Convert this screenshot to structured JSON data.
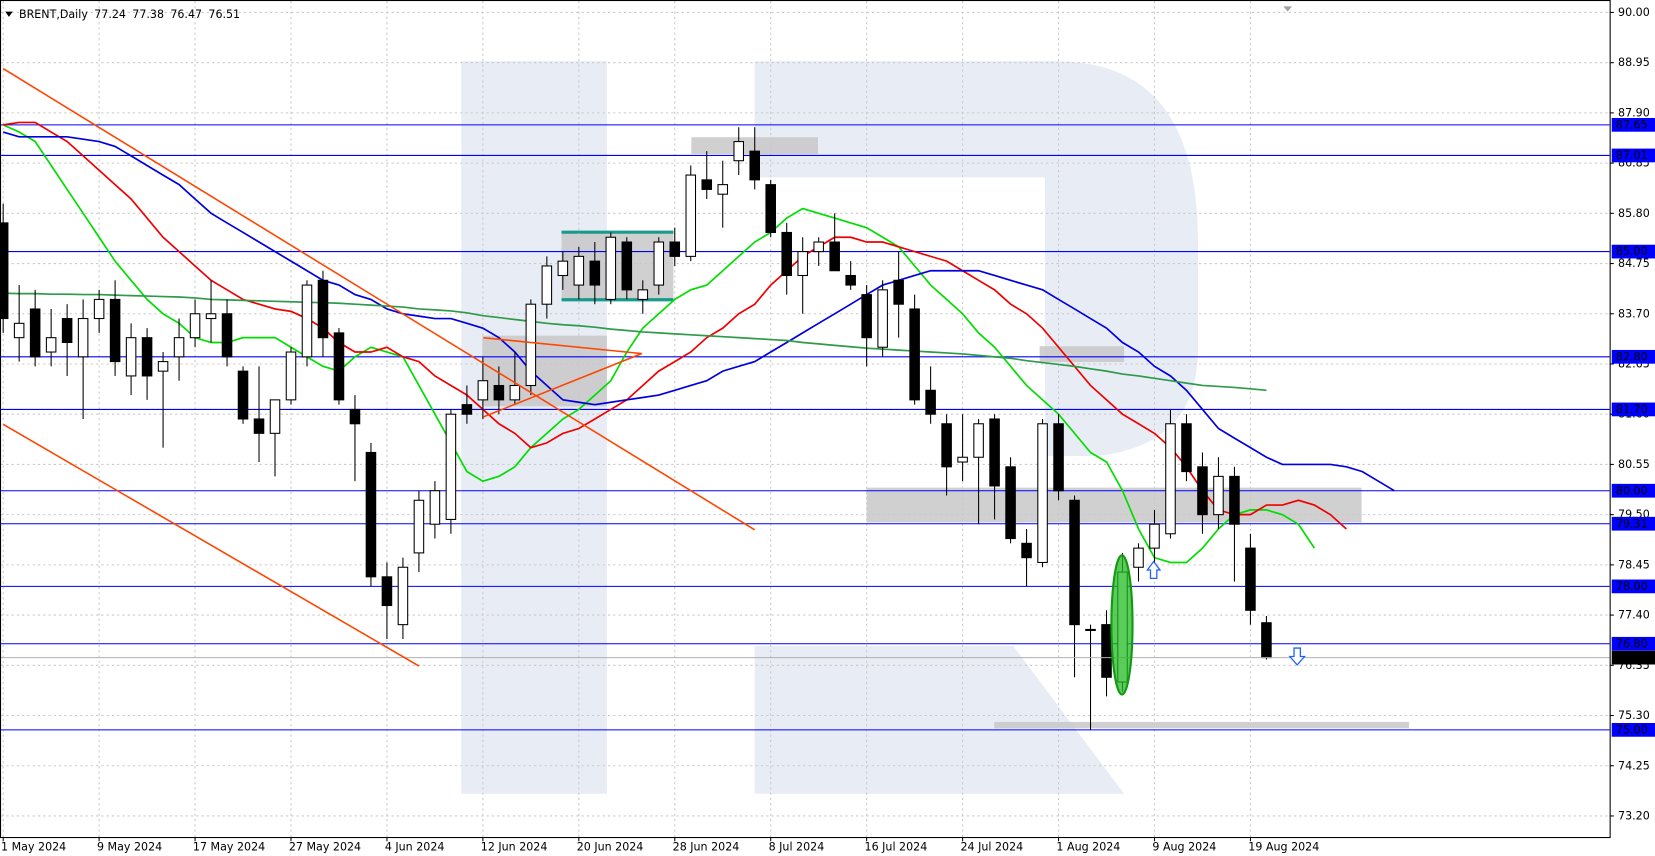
{
  "chart_data": {
    "type": "candlestick",
    "title": "BRENT,Daily",
    "categories": [
      "1 May 2024",
      null,
      null,
      null,
      null,
      null,
      "9 May 2024",
      null,
      null,
      null,
      null,
      null,
      "17 May 2024",
      null,
      null,
      null,
      null,
      null,
      "27 May 2024",
      null,
      null,
      null,
      null,
      null,
      "4 Jun 2024",
      null,
      null,
      null,
      null,
      null,
      "12 Jun 2024",
      null,
      null,
      null,
      null,
      null,
      "20 Jun 2024",
      null,
      null,
      null,
      null,
      null,
      "28 Jun 2024",
      null,
      null,
      null,
      null,
      null,
      "8 Jul 2024",
      null,
      null,
      null,
      null,
      null,
      "16 Jul 2024",
      null,
      null,
      null,
      null,
      null,
      "24 Jul 2024",
      null,
      null,
      null,
      null,
      null,
      "1 Aug 2024",
      null,
      null,
      null,
      null,
      null,
      "9 Aug 2024",
      null,
      null,
      null,
      null,
      null,
      "19 Aug 2024",
      null,
      null,
      null,
      null,
      null,
      null,
      null,
      null,
      null
    ],
    "open": [
      85.6,
      83.2,
      83.8,
      82.9,
      83.6,
      82.8,
      83.6,
      84.0,
      82.4,
      83.2,
      82.5,
      82.8,
      83.2,
      83.6,
      83.7,
      82.5,
      81.5,
      81.2,
      81.9,
      82.8,
      84.4,
      83.3,
      81.7,
      80.8,
      78.2,
      77.2,
      78.7,
      79.3,
      79.4,
      81.8,
      81.9,
      82.2,
      81.9,
      82.2,
      83.9,
      84.5,
      84.3,
      84.8,
      84.0,
      85.2,
      84.0,
      84.3,
      85.2,
      84.9,
      86.5,
      86.2,
      86.9,
      87.1,
      86.4,
      85.4,
      84.5,
      85.0,
      85.2,
      84.5,
      84.1,
      83.0,
      84.4,
      83.8,
      82.1,
      81.4,
      80.6,
      80.7,
      81.5,
      80.5,
      78.9,
      78.5,
      81.4,
      79.8,
      77.1,
      77.2,
      76.0,
      78.4,
      78.8,
      79.1,
      81.4,
      80.5,
      79.5,
      80.3,
      78.8,
      77.24,
      null,
      null,
      null,
      null,
      null,
      null,
      null,
      null
    ],
    "high": [
      86.0,
      84.3,
      84.2,
      83.8,
      83.9,
      84.0,
      84.2,
      84.4,
      83.5,
      83.4,
      82.9,
      83.6,
      84.0,
      84.4,
      84.0,
      82.6,
      82.6,
      81.9,
      83.0,
      84.4,
      84.6,
      83.4,
      82.0,
      81.0,
      78.5,
      78.6,
      80.0,
      80.2,
      81.7,
      82.2,
      82.8,
      82.6,
      82.9,
      84.0,
      84.9,
      85.0,
      85.1,
      85.2,
      85.4,
      85.3,
      84.4,
      85.3,
      85.5,
      86.8,
      87.1,
      86.9,
      87.6,
      87.6,
      86.5,
      85.6,
      85.3,
      85.3,
      85.8,
      84.8,
      84.3,
      84.4,
      85.0,
      84.1,
      82.6,
      81.6,
      81.6,
      81.5,
      81.6,
      80.7,
      79.2,
      81.5,
      81.6,
      79.9,
      77.2,
      77.5,
      78.7,
      78.9,
      79.6,
      81.7,
      81.6,
      80.8,
      80.7,
      80.5,
      79.1,
      77.38,
      null,
      null,
      null,
      null,
      null,
      null,
      null,
      null
    ],
    "low": [
      83.3,
      82.7,
      82.6,
      82.6,
      82.4,
      81.5,
      83.3,
      82.4,
      82.0,
      81.9,
      80.9,
      82.3,
      83.0,
      83.1,
      82.6,
      81.4,
      80.6,
      80.3,
      81.8,
      82.6,
      82.8,
      81.8,
      80.2,
      78.0,
      76.9,
      76.9,
      78.3,
      79.0,
      79.1,
      81.4,
      81.5,
      81.6,
      81.8,
      82.0,
      83.6,
      84.2,
      84.0,
      83.9,
      83.9,
      84.0,
      83.7,
      84.1,
      84.7,
      84.8,
      86.1,
      85.5,
      86.6,
      86.3,
      85.3,
      84.1,
      83.7,
      84.7,
      84.6,
      84.2,
      82.6,
      82.8,
      83.2,
      81.8,
      81.4,
      79.9,
      80.2,
      79.3,
      79.4,
      78.9,
      78.0,
      78.4,
      79.8,
      76.1,
      75.0,
      75.7,
      75.8,
      78.1,
      78.4,
      79.0,
      80.2,
      79.1,
      79.2,
      78.1,
      77.2,
      76.47,
      null,
      null,
      null,
      null,
      null,
      null,
      null,
      null
    ],
    "close": [
      83.6,
      83.5,
      82.8,
      83.2,
      83.1,
      83.6,
      84.0,
      82.7,
      83.2,
      82.4,
      82.7,
      83.2,
      83.7,
      83.7,
      82.8,
      81.5,
      81.2,
      81.9,
      82.9,
      84.3,
      83.2,
      81.9,
      81.4,
      78.2,
      77.6,
      78.4,
      79.8,
      80.0,
      81.6,
      81.6,
      82.3,
      81.9,
      82.2,
      83.9,
      84.7,
      84.8,
      84.9,
      84.3,
      85.3,
      84.2,
      84.2,
      85.2,
      84.9,
      86.6,
      86.3,
      86.4,
      87.3,
      86.5,
      85.4,
      84.5,
      85.0,
      85.2,
      84.6,
      84.3,
      83.2,
      84.2,
      83.9,
      81.9,
      81.6,
      80.5,
      80.7,
      81.4,
      80.1,
      79.0,
      78.6,
      81.4,
      80.0,
      77.2,
      77.1,
      76.1,
      78.3,
      78.8,
      79.3,
      81.4,
      80.4,
      79.5,
      80.3,
      79.3,
      77.5,
      76.51,
      null,
      null,
      null,
      null,
      null,
      null,
      null,
      null
    ],
    "up_color": "#ffffff",
    "down_color": "#000000",
    "lines": [
      {
        "color": "#00dd00",
        "values": [
          87.65,
          87.5,
          87.3,
          86.8,
          86.3,
          85.8,
          85.3,
          84.8,
          84.4,
          84.0,
          83.7,
          83.5,
          83.2,
          83.1,
          83.1,
          83.2,
          83.2,
          83.2,
          83.0,
          82.8,
          82.6,
          82.5,
          82.8,
          83.0,
          82.9,
          82.8,
          82.2,
          81.6,
          81.0,
          80.4,
          80.2,
          80.3,
          80.5,
          80.9,
          81.2,
          81.5,
          81.7,
          82.0,
          82.3,
          82.9,
          83.4,
          83.7,
          84.0,
          84.2,
          84.3,
          84.6,
          84.9,
          85.2,
          85.4,
          85.7,
          85.9,
          85.8,
          85.7,
          85.6,
          85.5,
          85.3,
          85.1,
          84.7,
          84.3,
          84.0,
          83.7,
          83.3,
          83.0,
          82.6,
          82.2,
          81.9,
          81.6,
          81.2,
          80.8,
          80.6,
          80.0,
          79.2,
          78.6,
          78.5,
          78.5,
          78.8,
          79.2,
          79.5,
          79.6,
          79.6,
          79.5,
          79.3,
          78.8,
          null,
          null,
          null,
          null,
          null
        ]
      },
      {
        "color": "#ee0000",
        "values": [
          87.65,
          87.7,
          87.7,
          87.5,
          87.3,
          87.0,
          86.7,
          86.4,
          86.1,
          85.7,
          85.3,
          85.0,
          84.7,
          84.4,
          84.2,
          84.0,
          83.9,
          83.8,
          83.75,
          83.6,
          83.4,
          83.1,
          82.9,
          82.9,
          83.0,
          82.8,
          82.7,
          82.4,
          82.2,
          82.0,
          81.7,
          81.4,
          81.2,
          80.9,
          81.0,
          81.2,
          81.3,
          81.5,
          81.7,
          81.9,
          82.2,
          82.5,
          82.7,
          82.9,
          83.2,
          83.4,
          83.7,
          83.9,
          84.3,
          84.6,
          84.9,
          85.1,
          85.3,
          85.3,
          85.2,
          85.2,
          85.1,
          85.0,
          84.9,
          84.8,
          84.6,
          84.4,
          84.2,
          83.9,
          83.7,
          83.4,
          83.0,
          82.6,
          82.2,
          81.9,
          81.6,
          81.4,
          81.2,
          80.9,
          80.5,
          80.0,
          79.6,
          79.5,
          79.5,
          79.7,
          79.7,
          79.8,
          79.7,
          79.5,
          79.2,
          null,
          null,
          null
        ]
      },
      {
        "color": "#0000dd",
        "values": [
          87.5,
          87.4,
          87.4,
          87.4,
          87.4,
          87.35,
          87.3,
          87.2,
          87.0,
          86.8,
          86.6,
          86.4,
          86.1,
          85.8,
          85.6,
          85.4,
          85.2,
          85.0,
          84.8,
          84.6,
          84.4,
          84.3,
          84.1,
          84.0,
          83.8,
          83.7,
          83.65,
          83.6,
          83.6,
          83.5,
          83.4,
          83.2,
          82.9,
          82.5,
          82.2,
          81.9,
          81.85,
          81.8,
          81.85,
          81.9,
          81.95,
          82.0,
          82.1,
          82.2,
          82.3,
          82.5,
          82.6,
          82.7,
          82.9,
          83.1,
          83.3,
          83.5,
          83.7,
          83.9,
          84.1,
          84.3,
          84.4,
          84.5,
          84.6,
          84.6,
          84.6,
          84.6,
          84.5,
          84.4,
          84.3,
          84.2,
          84.0,
          83.8,
          83.6,
          83.4,
          83.1,
          82.9,
          82.6,
          82.4,
          82.1,
          81.7,
          81.3,
          81.1,
          80.9,
          80.7,
          80.55,
          80.55,
          80.55,
          80.55,
          80.5,
          80.4,
          80.2,
          80.0
        ]
      },
      {
        "color": "#2e9a4a",
        "values": [
          84.13,
          84.12,
          84.12,
          84.11,
          84.11,
          84.1,
          84.1,
          84.09,
          84.08,
          84.07,
          84.06,
          84.05,
          84.03,
          84.0,
          83.99,
          83.98,
          83.97,
          83.96,
          83.95,
          83.94,
          83.93,
          83.92,
          83.9,
          83.88,
          83.86,
          83.84,
          83.8,
          83.78,
          83.76,
          83.72,
          83.66,
          83.62,
          83.58,
          83.54,
          83.5,
          83.47,
          83.45,
          83.42,
          83.38,
          83.35,
          83.32,
          83.3,
          83.28,
          83.26,
          83.24,
          83.22,
          83.2,
          83.18,
          83.16,
          83.14,
          83.1,
          83.07,
          83.04,
          83.01,
          82.98,
          82.96,
          82.94,
          82.92,
          82.9,
          82.88,
          82.86,
          82.83,
          82.8,
          82.77,
          82.72,
          82.68,
          82.64,
          82.6,
          82.55,
          82.5,
          82.44,
          82.4,
          82.35,
          82.3,
          82.25,
          82.2,
          82.18,
          82.16,
          82.13,
          82.1,
          null,
          null,
          null,
          null,
          null,
          null,
          null,
          null
        ]
      }
    ],
    "levels": [
      87.65,
      87.01,
      {
        "value": 85.0,
        "label": "85.00"
      },
      {
        "value": 82.8,
        "label": "82.80"
      },
      {
        "value": 81.7,
        "label": "81.70"
      },
      {
        "value": 80.0,
        "label": "80.00"
      },
      79.31,
      {
        "value": 78.0,
        "label": "78.00"
      },
      {
        "value": 76.8,
        "label": "76.80"
      },
      {
        "value": 75.0,
        "label": "75.00"
      }
    ],
    "level_color": "#0000ff",
    "ylim": [
      72.76,
      90.15
    ],
    "yticks": [
      {
        "value": 90.0,
        "label": "90.00"
      },
      88.95,
      {
        "value": 87.9,
        "label": "87.90"
      },
      86.85,
      {
        "value": 85.8,
        "label": "85.80"
      },
      84.75,
      {
        "value": 83.7,
        "label": "83.70"
      },
      82.65,
      {
        "value": 81.6,
        "label": "81.60"
      },
      80.55,
      {
        "value": 79.5,
        "label": "79.50"
      },
      78.45,
      {
        "value": 77.4,
        "label": "77.40"
      },
      76.35,
      {
        "value": 75.3,
        "label": "75.30"
      },
      74.25,
      {
        "value": 73.2,
        "label": "73.20"
      }
    ],
    "grid": true
  }
}
